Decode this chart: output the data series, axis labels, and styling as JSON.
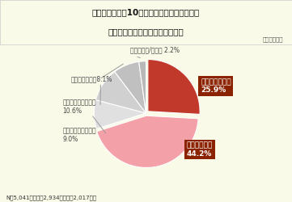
{
  "title_line1": "１．秋から冬（10月頃～２月頃）にかけて、",
  "title_line2": "「のどの乾燥」が気になりますか",
  "subtitle": "（単一回答）",
  "labels": [
    "とても気になる",
    "やや気になる",
    "どちらともいえない",
    "あまり気にならない",
    "気にならない",
    "わからない/その他"
  ],
  "values": [
    25.9,
    44.2,
    9.0,
    10.6,
    8.1,
    2.2
  ],
  "colors": [
    "#c0392b",
    "#f4a0a8",
    "#e0e0e0",
    "#d0d0d0",
    "#c0c0c0",
    "#b8b8b8"
  ],
  "label_box_color": "#8b2200",
  "explode": [
    0.05,
    0.05,
    0.0,
    0.0,
    0.0,
    0.0
  ],
  "footnote": "N＝5,041名（女性2,934名・男性2,017名）",
  "bg_color": "#fafae8",
  "title_bg": "#fafae8",
  "outer_label_color": "#444444",
  "outer_labels": [
    {
      "idx": 2,
      "text": "どちらともいえない\n9.0%",
      "side": "left"
    },
    {
      "idx": 3,
      "text": "あまり気にならない\n10.6%",
      "side": "left"
    },
    {
      "idx": 4,
      "text": "気にならない　8.1%",
      "side": "left"
    },
    {
      "idx": 5,
      "text": "わからない/その他 2.2%",
      "side": "top"
    }
  ]
}
